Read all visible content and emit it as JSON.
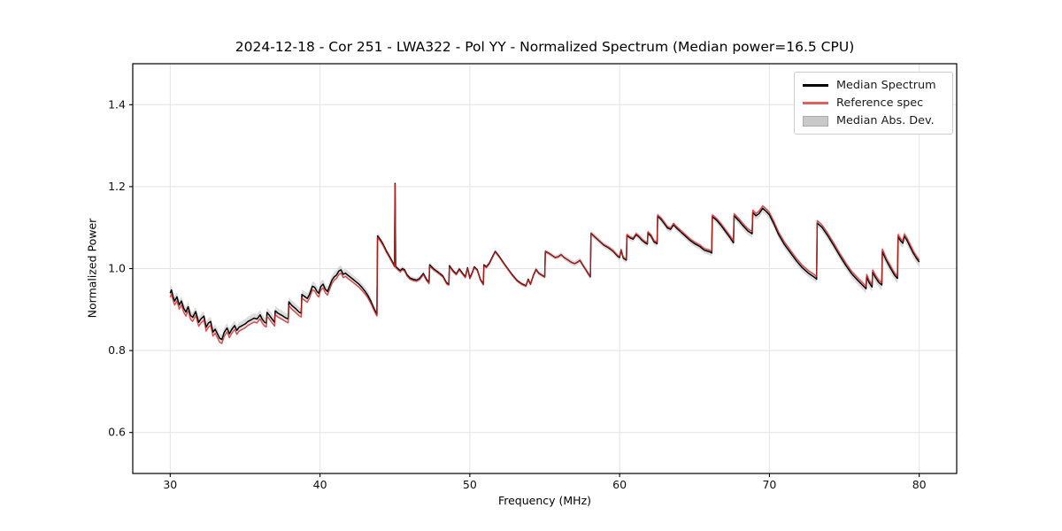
{
  "figure": {
    "title": "2024-12-18 - Cor 251 - LWA322 - Pol YY - Normalized Spectrum (Median power=16.5 CPU)",
    "xlabel": "Frequency (MHz)",
    "ylabel": "Normalized Power"
  },
  "legend": {
    "items": [
      {
        "label": "Median Spectrum",
        "type": "line",
        "color": "#000000"
      },
      {
        "label": "Reference spec",
        "type": "line",
        "color": "#e0605f"
      },
      {
        "label": "Median Abs. Dev.",
        "type": "patch",
        "color": "#c9c9c9",
        "edge": "#ababab"
      }
    ]
  },
  "chart_data": {
    "type": "line",
    "title": "2024-12-18 - Cor 251 - LWA322 - Pol YY - Normalized Spectrum (Median power=16.5 CPU)",
    "xlabel": "Frequency (MHz)",
    "ylabel": "Normalized Power",
    "xlim": [
      27.5,
      82.5
    ],
    "ylim": [
      0.5,
      1.5
    ],
    "xticks": [
      30,
      40,
      50,
      60,
      70,
      80
    ],
    "yticks": [
      0.6,
      0.8,
      1.0,
      1.2,
      1.4
    ],
    "grid": true,
    "grid_color": "#e3e3e3",
    "legend_position": "upper right",
    "series": [
      {
        "name": "Median Spectrum",
        "color": "#000000",
        "width": 1.5,
        "points": [
          [
            30.0,
            0.94
          ],
          [
            30.08,
            0.948
          ],
          [
            30.2,
            0.93
          ],
          [
            30.3,
            0.921
          ],
          [
            30.45,
            0.931
          ],
          [
            30.6,
            0.911
          ],
          [
            30.75,
            0.921
          ],
          [
            30.9,
            0.903
          ],
          [
            31.05,
            0.894
          ],
          [
            31.2,
            0.907
          ],
          [
            31.35,
            0.886
          ],
          [
            31.5,
            0.881
          ],
          [
            31.7,
            0.895
          ],
          [
            31.9,
            0.869
          ],
          [
            32.05,
            0.877
          ],
          [
            32.25,
            0.884
          ],
          [
            32.4,
            0.857
          ],
          [
            32.55,
            0.867
          ],
          [
            32.7,
            0.871
          ],
          [
            32.85,
            0.845
          ],
          [
            33.0,
            0.852
          ],
          [
            33.15,
            0.841
          ],
          [
            33.3,
            0.83
          ],
          [
            33.45,
            0.827
          ],
          [
            33.6,
            0.844
          ],
          [
            33.8,
            0.855
          ],
          [
            33.95,
            0.841
          ],
          [
            34.1,
            0.851
          ],
          [
            34.3,
            0.861
          ],
          [
            34.45,
            0.849
          ],
          [
            34.6,
            0.857
          ],
          [
            34.8,
            0.861
          ],
          [
            35.0,
            0.865
          ],
          [
            35.2,
            0.871
          ],
          [
            35.4,
            0.875
          ],
          [
            35.6,
            0.879
          ],
          [
            35.8,
            0.877
          ],
          [
            36.0,
            0.887
          ],
          [
            36.15,
            0.876
          ],
          [
            36.3,
            0.869
          ],
          [
            36.42,
            0.867
          ],
          [
            36.46,
            0.893
          ],
          [
            36.6,
            0.887
          ],
          [
            36.8,
            0.877
          ],
          [
            36.97,
            0.869
          ],
          [
            37.01,
            0.897
          ],
          [
            37.2,
            0.891
          ],
          [
            37.45,
            0.886
          ],
          [
            37.7,
            0.88
          ],
          [
            37.88,
            0.877
          ],
          [
            37.92,
            0.919
          ],
          [
            38.1,
            0.911
          ],
          [
            38.35,
            0.903
          ],
          [
            38.6,
            0.894
          ],
          [
            38.75,
            0.891
          ],
          [
            38.79,
            0.937
          ],
          [
            39.0,
            0.931
          ],
          [
            39.15,
            0.927
          ],
          [
            39.3,
            0.937
          ],
          [
            39.5,
            0.957
          ],
          [
            39.65,
            0.954
          ],
          [
            39.8,
            0.944
          ],
          [
            39.92,
            0.94
          ],
          [
            40.05,
            0.956
          ],
          [
            40.2,
            0.962
          ],
          [
            40.35,
            0.95
          ],
          [
            40.5,
            0.944
          ],
          [
            40.65,
            0.958
          ],
          [
            40.8,
            0.972
          ],
          [
            40.95,
            0.98
          ],
          [
            41.1,
            0.984
          ],
          [
            41.25,
            0.994
          ],
          [
            41.4,
            0.997
          ],
          [
            41.55,
            0.986
          ],
          [
            41.7,
            0.989
          ],
          [
            41.85,
            0.984
          ],
          [
            42.0,
            0.98
          ],
          [
            42.2,
            0.974
          ],
          [
            42.4,
            0.968
          ],
          [
            42.6,
            0.962
          ],
          [
            42.8,
            0.954
          ],
          [
            43.0,
            0.945
          ],
          [
            43.2,
            0.934
          ],
          [
            43.4,
            0.92
          ],
          [
            43.6,
            0.903
          ],
          [
            43.8,
            0.888
          ],
          [
            43.84,
            1.08
          ],
          [
            44.0,
            1.072
          ],
          [
            44.2,
            1.06
          ],
          [
            44.4,
            1.045
          ],
          [
            44.6,
            1.032
          ],
          [
            44.8,
            1.019
          ],
          [
            44.97,
            1.007
          ],
          [
            45.01,
            1.208
          ],
          [
            45.05,
            1.005
          ],
          [
            45.2,
            1.0
          ],
          [
            45.35,
            0.995
          ],
          [
            45.5,
            1.0
          ],
          [
            45.65,
            0.997
          ],
          [
            45.8,
            0.985
          ],
          [
            46.0,
            0.977
          ],
          [
            46.2,
            0.974
          ],
          [
            46.45,
            0.972
          ],
          [
            46.65,
            0.976
          ],
          [
            46.9,
            0.988
          ],
          [
            47.1,
            0.974
          ],
          [
            47.28,
            0.966
          ],
          [
            47.32,
            1.009
          ],
          [
            47.6,
            0.999
          ],
          [
            47.9,
            0.991
          ],
          [
            48.2,
            0.982
          ],
          [
            48.45,
            0.965
          ],
          [
            48.6,
            0.962
          ],
          [
            48.64,
            1.007
          ],
          [
            48.9,
            0.994
          ],
          [
            49.1,
            0.987
          ],
          [
            49.3,
            0.999
          ],
          [
            49.5,
            0.989
          ],
          [
            49.7,
            0.98
          ],
          [
            49.85,
            1.002
          ],
          [
            50.0,
            0.977
          ],
          [
            50.15,
            0.989
          ],
          [
            50.3,
            1.004
          ],
          [
            50.5,
            0.997
          ],
          [
            50.7,
            0.974
          ],
          [
            50.9,
            0.962
          ],
          [
            50.94,
            1.009
          ],
          [
            51.1,
            1.004
          ],
          [
            51.3,
            1.013
          ],
          [
            51.5,
            1.028
          ],
          [
            51.7,
            1.042
          ],
          [
            51.95,
            1.03
          ],
          [
            52.25,
            1.014
          ],
          [
            52.55,
            0.999
          ],
          [
            52.85,
            0.984
          ],
          [
            53.15,
            0.971
          ],
          [
            53.45,
            0.963
          ],
          [
            53.75,
            0.958
          ],
          [
            53.9,
            0.974
          ],
          [
            54.05,
            0.962
          ],
          [
            54.25,
            0.984
          ],
          [
            54.42,
            0.998
          ],
          [
            54.6,
            0.989
          ],
          [
            54.85,
            0.983
          ],
          [
            55.0,
            0.98
          ],
          [
            55.04,
            1.042
          ],
          [
            55.3,
            1.037
          ],
          [
            55.5,
            1.032
          ],
          [
            55.7,
            1.027
          ],
          [
            55.9,
            1.029
          ],
          [
            56.1,
            1.034
          ],
          [
            56.3,
            1.027
          ],
          [
            56.55,
            1.021
          ],
          [
            56.8,
            1.015
          ],
          [
            57.0,
            1.012
          ],
          [
            57.2,
            1.016
          ],
          [
            57.35,
            1.02
          ],
          [
            57.55,
            1.008
          ],
          [
            57.75,
            0.997
          ],
          [
            57.9,
            0.988
          ],
          [
            58.05,
            0.98
          ],
          [
            58.09,
            1.086
          ],
          [
            58.35,
            1.077
          ],
          [
            58.65,
            1.067
          ],
          [
            58.95,
            1.057
          ],
          [
            59.25,
            1.051
          ],
          [
            59.55,
            1.043
          ],
          [
            59.85,
            1.031
          ],
          [
            60.0,
            1.027
          ],
          [
            60.1,
            1.045
          ],
          [
            60.25,
            1.025
          ],
          [
            60.45,
            1.021
          ],
          [
            60.49,
            1.081
          ],
          [
            60.7,
            1.075
          ],
          [
            60.9,
            1.072
          ],
          [
            61.1,
            1.083
          ],
          [
            61.3,
            1.077
          ],
          [
            61.5,
            1.069
          ],
          [
            61.7,
            1.063
          ],
          [
            61.85,
            1.06
          ],
          [
            61.89,
            1.087
          ],
          [
            62.1,
            1.079
          ],
          [
            62.3,
            1.065
          ],
          [
            62.5,
            1.061
          ],
          [
            62.54,
            1.128
          ],
          [
            62.8,
            1.119
          ],
          [
            63.0,
            1.109
          ],
          [
            63.2,
            1.099
          ],
          [
            63.4,
            1.096
          ],
          [
            63.6,
            1.107
          ],
          [
            63.8,
            1.099
          ],
          [
            64.1,
            1.089
          ],
          [
            64.4,
            1.079
          ],
          [
            64.7,
            1.069
          ],
          [
            65.0,
            1.061
          ],
          [
            65.35,
            1.054
          ],
          [
            65.65,
            1.045
          ],
          [
            66.0,
            1.041
          ],
          [
            66.15,
            1.038
          ],
          [
            66.19,
            1.127
          ],
          [
            66.5,
            1.117
          ],
          [
            66.8,
            1.104
          ],
          [
            67.1,
            1.089
          ],
          [
            67.4,
            1.074
          ],
          [
            67.6,
            1.063
          ],
          [
            67.64,
            1.129
          ],
          [
            67.95,
            1.117
          ],
          [
            68.25,
            1.104
          ],
          [
            68.55,
            1.092
          ],
          [
            68.85,
            1.085
          ],
          [
            68.89,
            1.137
          ],
          [
            69.1,
            1.129
          ],
          [
            69.3,
            1.134
          ],
          [
            69.55,
            1.147
          ],
          [
            69.8,
            1.139
          ],
          [
            70.0,
            1.131
          ],
          [
            70.3,
            1.109
          ],
          [
            70.6,
            1.084
          ],
          [
            71.0,
            1.059
          ],
          [
            71.4,
            1.039
          ],
          [
            71.8,
            1.019
          ],
          [
            72.2,
            1.002
          ],
          [
            72.6,
            0.989
          ],
          [
            73.0,
            0.979
          ],
          [
            73.15,
            0.974
          ],
          [
            73.19,
            1.111
          ],
          [
            73.5,
            1.101
          ],
          [
            73.9,
            1.08
          ],
          [
            74.3,
            1.056
          ],
          [
            74.7,
            1.031
          ],
          [
            75.1,
            1.008
          ],
          [
            75.5,
            0.987
          ],
          [
            75.9,
            0.971
          ],
          [
            76.2,
            0.96
          ],
          [
            76.45,
            0.951
          ],
          [
            76.49,
            0.98
          ],
          [
            76.65,
            0.966
          ],
          [
            76.85,
            0.955
          ],
          [
            76.89,
            0.991
          ],
          [
            77.1,
            0.977
          ],
          [
            77.3,
            0.966
          ],
          [
            77.5,
            0.96
          ],
          [
            77.54,
            1.042
          ],
          [
            77.8,
            1.02
          ],
          [
            78.1,
            1.0
          ],
          [
            78.35,
            0.984
          ],
          [
            78.55,
            0.976
          ],
          [
            78.59,
            1.078
          ],
          [
            78.75,
            1.068
          ],
          [
            78.9,
            1.062
          ],
          [
            79.0,
            1.079
          ],
          [
            79.2,
            1.068
          ],
          [
            79.4,
            1.053
          ],
          [
            79.6,
            1.038
          ],
          [
            79.8,
            1.026
          ],
          [
            80.0,
            1.016
          ]
        ]
      },
      {
        "name": "Reference spec",
        "color": "#d62728",
        "opacity": 0.8,
        "width": 1.4,
        "derived": "median_plus_offset",
        "offset_breakpoints": [
          [
            30,
            -0.01
          ],
          [
            40,
            -0.009
          ],
          [
            43,
            -0.007
          ],
          [
            44,
            -0.003
          ],
          [
            46,
            -0.003
          ],
          [
            50,
            -0.002
          ],
          [
            55,
            -0.001
          ],
          [
            58,
            0.001
          ],
          [
            62,
            0.003
          ],
          [
            66,
            0.004
          ],
          [
            70,
            0.006
          ],
          [
            74,
            0.006
          ],
          [
            80,
            0.005
          ]
        ]
      },
      {
        "name": "Median Abs. Dev.",
        "color": "#bfbfbf",
        "opacity": 0.55,
        "derived": "band_around_median",
        "halfwidth_breakpoints": [
          [
            30,
            0.012
          ],
          [
            35,
            0.012
          ],
          [
            40,
            0.012
          ],
          [
            43,
            0.01
          ],
          [
            44,
            0.008
          ],
          [
            45,
            0.006
          ],
          [
            47,
            0.006
          ],
          [
            50,
            0.005
          ],
          [
            53,
            0.005
          ],
          [
            56,
            0.006
          ],
          [
            58,
            0.007
          ],
          [
            60,
            0.007
          ],
          [
            63,
            0.008
          ],
          [
            66,
            0.008
          ],
          [
            69,
            0.01
          ],
          [
            71,
            0.01
          ],
          [
            73,
            0.009
          ],
          [
            75,
            0.01
          ],
          [
            77,
            0.012
          ],
          [
            80,
            0.012
          ]
        ]
      }
    ]
  }
}
